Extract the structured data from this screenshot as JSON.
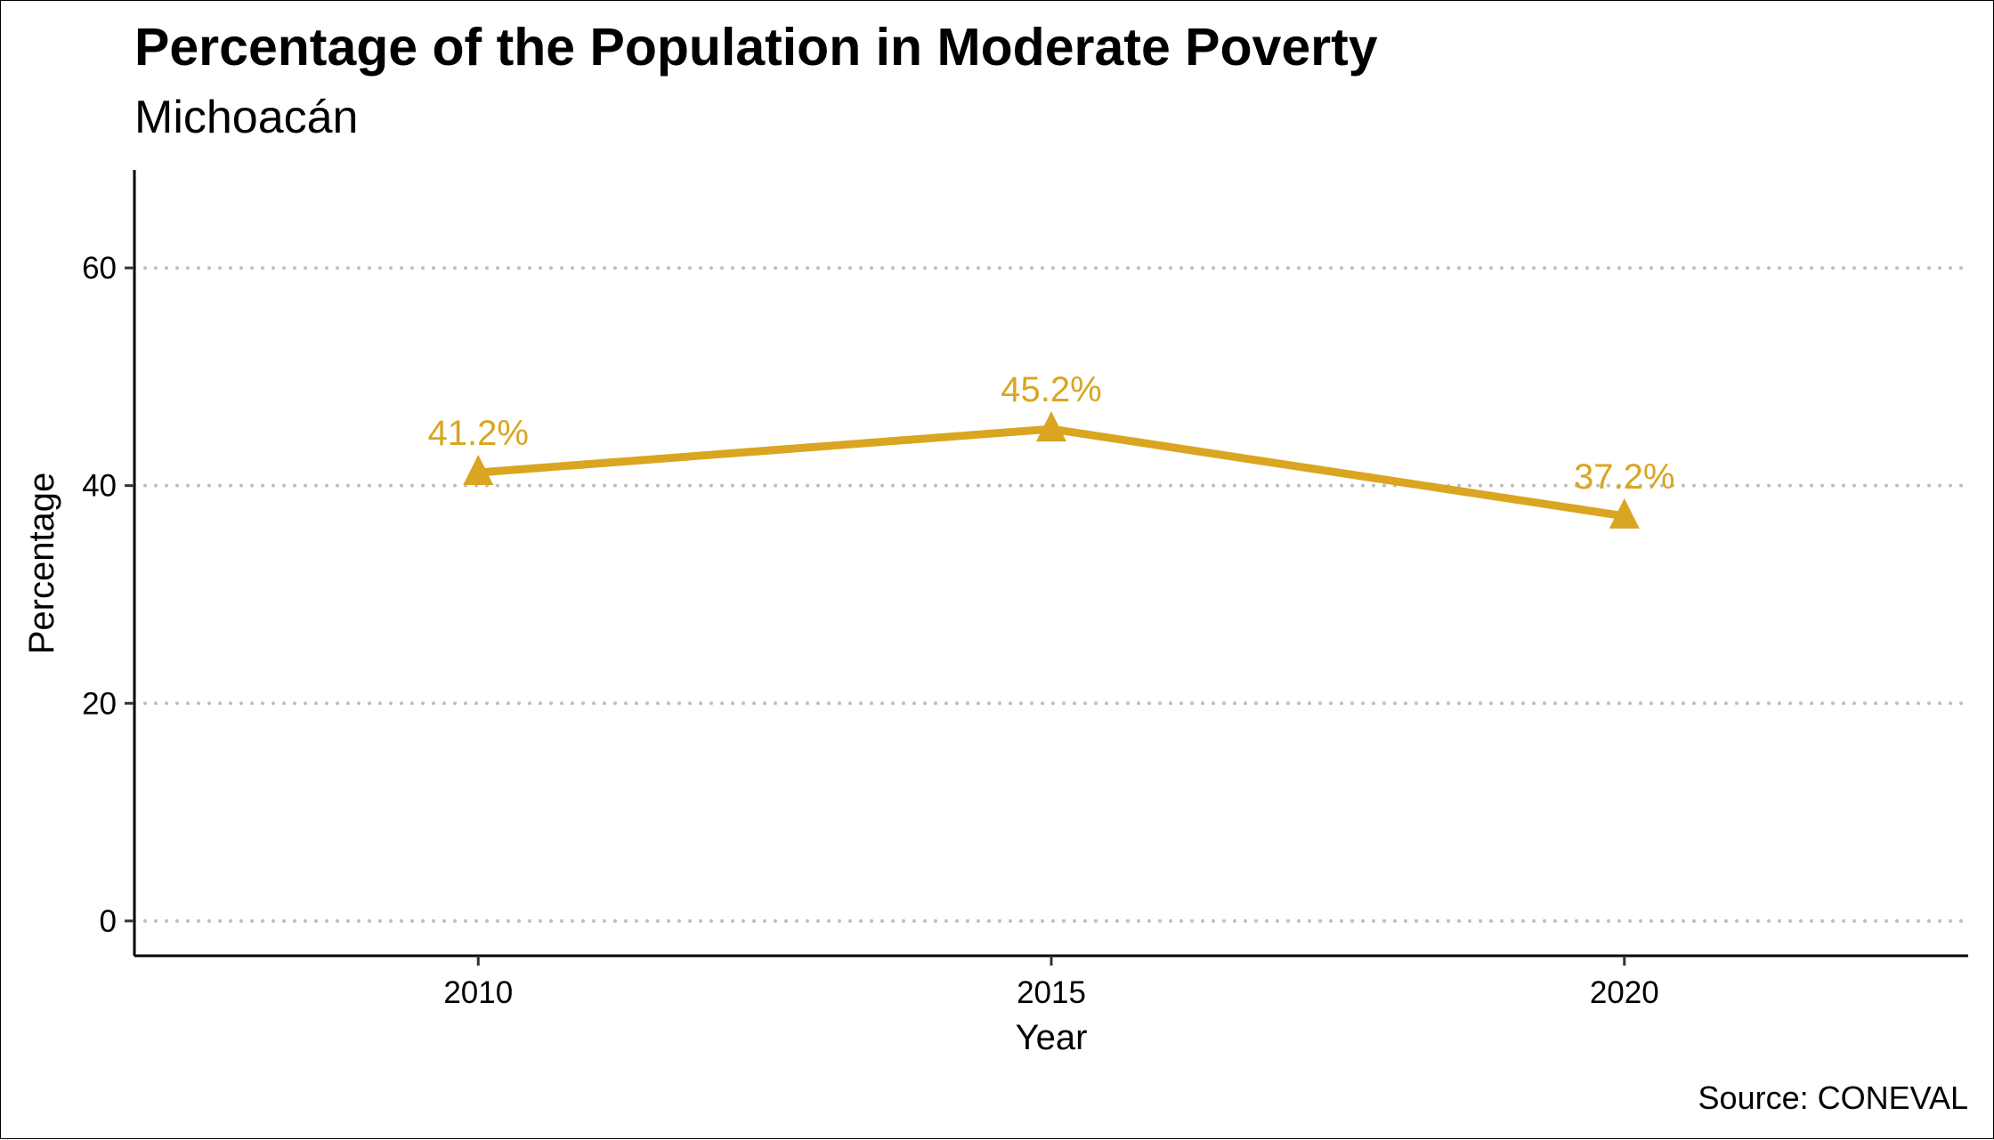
{
  "chart_data": {
    "type": "line",
    "title": "Percentage of the Population in Moderate Poverty",
    "subtitle": "Michoacán",
    "xlabel": "Year",
    "ylabel": "Percentage",
    "caption": "Source: CONEVAL",
    "x": [
      2010,
      2015,
      2020
    ],
    "xticks": [
      2010,
      2015,
      2020
    ],
    "xlim": [
      2007,
      2023
    ],
    "yticks": [
      0,
      20,
      40,
      60
    ],
    "ylim": [
      -3.2,
      69
    ],
    "series": [
      {
        "values": [
          41.2,
          45.2,
          37.2
        ],
        "labels": [
          "41.2%",
          "45.2%",
          "37.2%"
        ],
        "color": "#DAA520",
        "marker": "triangle"
      }
    ],
    "grid": {
      "horizontal": true,
      "vertical": false,
      "style": "dotted",
      "color": "#BEBEBE"
    },
    "legend": "none"
  }
}
